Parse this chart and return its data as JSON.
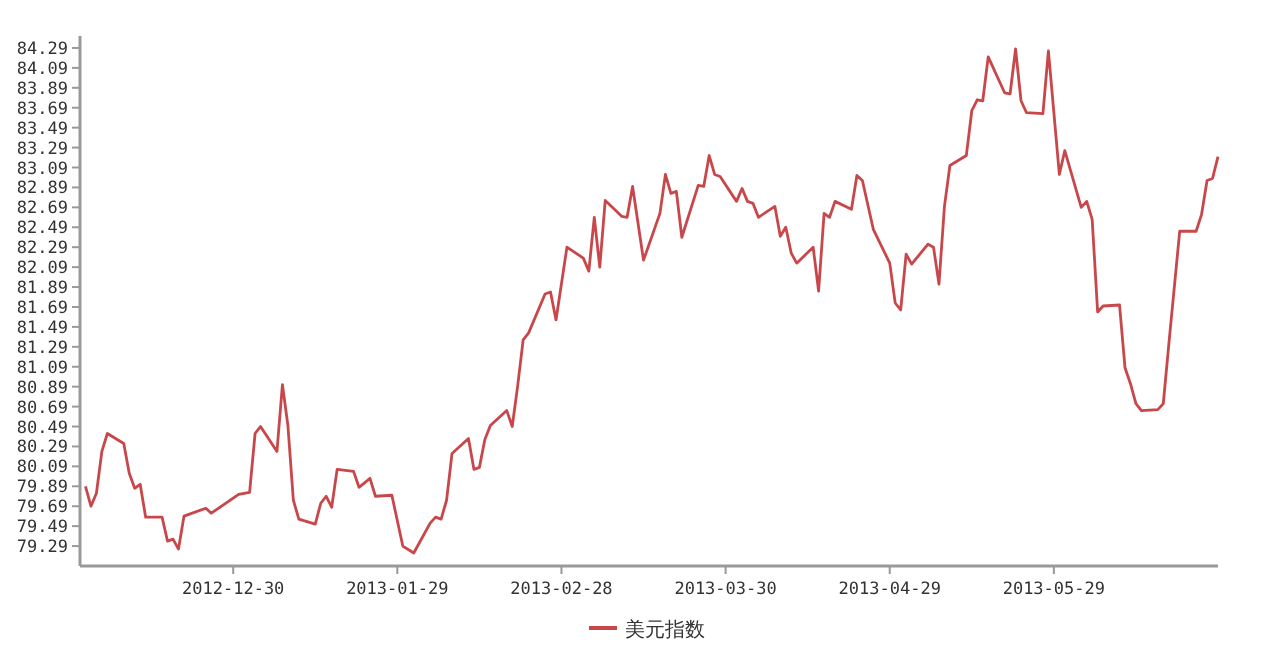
{
  "chart_data": {
    "type": "line",
    "x": [
      "2012-12-03",
      "2012-12-04",
      "2012-12-05",
      "2012-12-06",
      "2012-12-07",
      "2012-12-10",
      "2012-12-11",
      "2012-12-12",
      "2012-12-13",
      "2012-12-14",
      "2012-12-17",
      "2012-12-18",
      "2012-12-19",
      "2012-12-20",
      "2012-12-21",
      "2012-12-25",
      "2012-12-26",
      "2012-12-31",
      "2013-01-02",
      "2013-01-03",
      "2013-01-04",
      "2013-01-07",
      "2013-01-08",
      "2013-01-09",
      "2013-01-10",
      "2013-01-11",
      "2013-01-14",
      "2013-01-15",
      "2013-01-16",
      "2013-01-17",
      "2013-01-18",
      "2013-01-21",
      "2013-01-22",
      "2013-01-24",
      "2013-01-25",
      "2013-01-28",
      "2013-01-30",
      "2013-02-01",
      "2013-02-04",
      "2013-02-05",
      "2013-02-06",
      "2013-02-07",
      "2013-02-08",
      "2013-02-11",
      "2013-02-12",
      "2013-02-13",
      "2013-02-14",
      "2013-02-15",
      "2013-02-18",
      "2013-02-19",
      "2013-02-20",
      "2013-02-21",
      "2013-02-22",
      "2013-02-25",
      "2013-02-26",
      "2013-02-27",
      "2013-03-01",
      "2013-03-04",
      "2013-03-05",
      "2013-03-06",
      "2013-03-07",
      "2013-03-08",
      "2013-03-11",
      "2013-03-12",
      "2013-03-13",
      "2013-03-15",
      "2013-03-18",
      "2013-03-19",
      "2013-03-20",
      "2013-03-21",
      "2013-03-22",
      "2013-03-25",
      "2013-03-26",
      "2013-03-27",
      "2013-03-28",
      "2013-03-29",
      "2013-04-01",
      "2013-04-02",
      "2013-04-03",
      "2013-04-04",
      "2013-04-05",
      "2013-04-08",
      "2013-04-09",
      "2013-04-10",
      "2013-04-11",
      "2013-04-12",
      "2013-04-15",
      "2013-04-16",
      "2013-04-17",
      "2013-04-18",
      "2013-04-19",
      "2013-04-22",
      "2013-04-23",
      "2013-04-24",
      "2013-04-26",
      "2013-04-29",
      "2013-04-30",
      "2013-05-01",
      "2013-05-02",
      "2013-05-03",
      "2013-05-06",
      "2013-05-07",
      "2013-05-08",
      "2013-05-09",
      "2013-05-10",
      "2013-05-13",
      "2013-05-14",
      "2013-05-15",
      "2013-05-16",
      "2013-05-17",
      "2013-05-20",
      "2013-05-21",
      "2013-05-22",
      "2013-05-23",
      "2013-05-24",
      "2013-05-27",
      "2013-05-28",
      "2013-05-30",
      "2013-05-31",
      "2013-06-03",
      "2013-06-04",
      "2013-06-05",
      "2013-06-06",
      "2013-06-07",
      "2013-06-10",
      "2013-06-11",
      "2013-06-12",
      "2013-06-13",
      "2013-06-14",
      "2013-06-17",
      "2013-06-18",
      "2013-06-19",
      "2013-06-21",
      "2013-06-24",
      "2013-06-25",
      "2013-06-26",
      "2013-06-27",
      "2013-06-28"
    ],
    "series": [
      {
        "name": "美元指数",
        "color": "#c8474a",
        "values": [
          79.89,
          79.69,
          79.82,
          80.24,
          80.42,
          80.32,
          80.02,
          79.87,
          79.91,
          79.58,
          79.58,
          79.34,
          79.36,
          79.26,
          79.59,
          79.67,
          79.62,
          79.81,
          79.83,
          80.42,
          80.49,
          80.24,
          80.91,
          80.5,
          79.75,
          79.56,
          79.51,
          79.72,
          79.79,
          79.68,
          80.06,
          80.04,
          79.88,
          79.97,
          79.79,
          79.8,
          79.29,
          79.22,
          79.52,
          79.58,
          79.56,
          79.75,
          80.22,
          80.37,
          80.06,
          80.08,
          80.36,
          80.5,
          80.65,
          80.49,
          80.9,
          81.36,
          81.43,
          81.82,
          81.84,
          81.56,
          82.29,
          82.18,
          82.05,
          82.59,
          82.09,
          82.76,
          82.6,
          82.59,
          82.9,
          82.16,
          82.63,
          83.02,
          82.83,
          82.85,
          82.39,
          82.91,
          82.9,
          83.21,
          83.02,
          83.0,
          82.75,
          82.88,
          82.75,
          82.73,
          82.59,
          82.7,
          82.4,
          82.49,
          82.23,
          82.13,
          82.29,
          81.85,
          82.63,
          82.59,
          82.75,
          82.67,
          83.01,
          82.96,
          82.47,
          82.13,
          81.73,
          81.66,
          82.22,
          82.12,
          82.32,
          82.29,
          81.92,
          82.7,
          83.11,
          83.21,
          83.66,
          83.77,
          83.76,
          84.2,
          83.84,
          83.83,
          84.28,
          83.76,
          83.64,
          83.63,
          84.26,
          83.02,
          83.26,
          82.69,
          82.75,
          82.57,
          81.64,
          81.7,
          81.71,
          81.08,
          80.92,
          80.72,
          80.65,
          80.66,
          80.72,
          81.31,
          82.45,
          82.45,
          82.62,
          82.96,
          82.98,
          83.2
        ]
      }
    ],
    "xlim": [
      "2012-12-02",
      "2013-06-28"
    ],
    "ylim": [
      79.09,
      84.41
    ],
    "xticks": [
      "2012-12-30",
      "2013-01-29",
      "2013-02-28",
      "2013-03-30",
      "2013-04-29",
      "2013-05-29"
    ],
    "yticks": [
      79.29,
      79.49,
      79.69,
      79.89,
      80.09,
      80.29,
      80.49,
      80.69,
      80.89,
      81.09,
      81.29,
      81.49,
      81.69,
      81.89,
      82.09,
      82.29,
      82.49,
      82.69,
      82.89,
      83.09,
      83.29,
      83.49,
      83.69,
      83.89,
      84.09,
      84.29
    ],
    "legend": "bottom"
  }
}
